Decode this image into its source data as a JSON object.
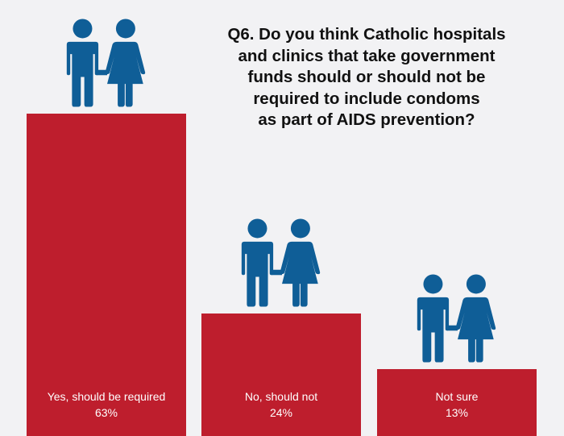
{
  "chart_data": {
    "type": "bar",
    "title": "Q6.  Do you think Catholic hospitals\nand clinics that take government\nfunds should or should not be\nrequired to include condoms\nas part of AIDS prevention?",
    "categories": [
      "Yes, should be required",
      "No, should not",
      "Not sure"
    ],
    "values": [
      63,
      24,
      13
    ],
    "value_labels": [
      "63%",
      "24%",
      "13%"
    ],
    "unit": "%",
    "ylim": [
      0,
      100
    ]
  },
  "colors": {
    "bar": "#be1e2d",
    "figure": "#0f5e97",
    "background": "#f2f2f4",
    "bar_text": "#ffffff",
    "title_text": "#111111"
  },
  "icons": {
    "couple": "man-and-woman-icon"
  }
}
